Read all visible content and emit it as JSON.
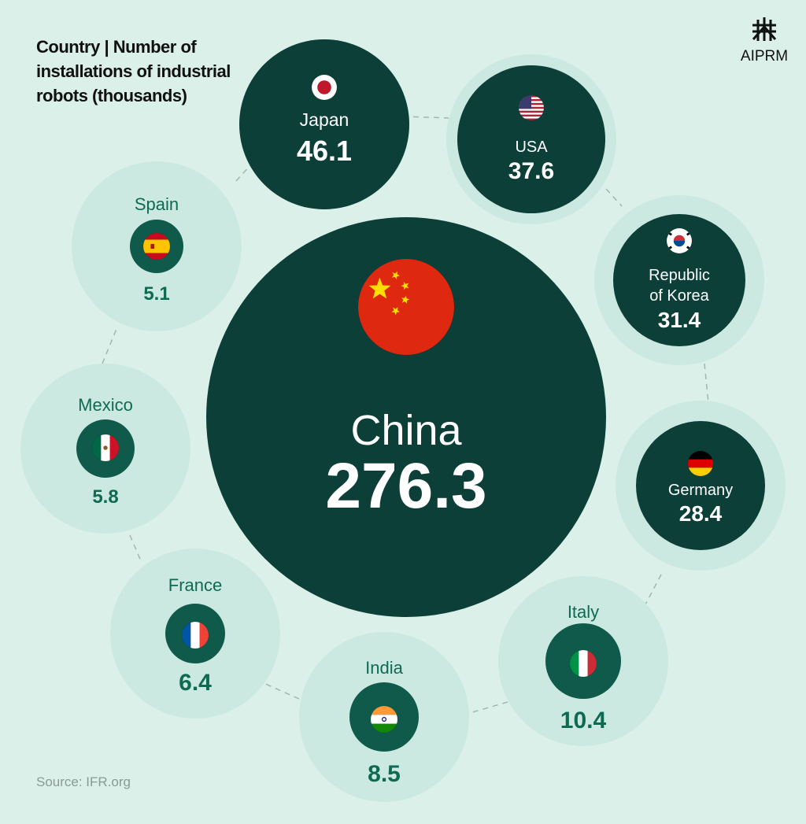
{
  "title": {
    "prefix": "Country | ",
    "main": "Number of installations of industrial robots (thousands)"
  },
  "source": "Source: IFR.org",
  "logo_text": "AIPRM",
  "colors": {
    "background": "#dcf0ea",
    "dark_green": "#0f5a4a",
    "darkest_green": "#0b3f38",
    "halo": "#cce9e1",
    "value_text": "#0f6a52",
    "white": "#ffffff"
  },
  "chart_data": {
    "type": "bubble",
    "title": "Country | Number of installations of industrial robots (thousands)",
    "unit": "thousands",
    "categories": [
      "China",
      "Japan",
      "USA",
      "Republic of Korea",
      "Germany",
      "Italy",
      "India",
      "France",
      "Mexico",
      "Spain"
    ],
    "values": [
      276.3,
      46.1,
      37.6,
      31.4,
      28.4,
      10.4,
      8.5,
      6.4,
      5.8,
      5.1
    ],
    "labels": [
      "China",
      "Japan",
      "USA",
      "Republic\nof Korea",
      "Germany",
      "Italy",
      "India",
      "France",
      "Mexico",
      "Spain"
    ],
    "display_values": [
      "276.3",
      "46.1",
      "37.6",
      "31.4",
      "28.4",
      "10.4",
      "8.5",
      "6.4",
      "5.8",
      "5.1"
    ],
    "flags": [
      "china-flag-icon",
      "japan-flag-icon",
      "usa-flag-icon",
      "korea-flag-icon",
      "germany-flag-icon",
      "italy-flag-icon",
      "india-flag-icon",
      "france-flag-icon",
      "mexico-flag-icon",
      "spain-flag-icon"
    ]
  }
}
